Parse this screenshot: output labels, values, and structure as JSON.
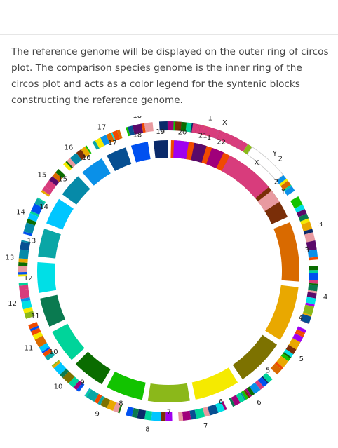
{
  "description": "The reference genome will be displayed on the outer ring of circos plot. The comparison species genome is the inner ring of the circos plot and acts as a color legend for the syntenic blocks constructing the reference genome.",
  "outer_ring": {
    "chromosomes": [
      "1",
      "2",
      "3",
      "4",
      "5",
      "6",
      "7",
      "8",
      "9",
      "10",
      "11",
      "12",
      "13",
      "14",
      "15",
      "16",
      "17",
      "18",
      "19",
      "X",
      "Y"
    ]
  },
  "inner_ring": {
    "chromosomes": [
      {
        "label": "1",
        "color": "#f04a00"
      },
      {
        "label": "2",
        "color": "#7a2e08"
      },
      {
        "label": "3",
        "color": "#d96a00"
      },
      {
        "label": "4",
        "color": "#e9a800"
      },
      {
        "label": "5",
        "color": "#7d7200"
      },
      {
        "label": "6",
        "color": "#f5ea00"
      },
      {
        "label": "7",
        "color": "#8bb81a"
      },
      {
        "label": "8",
        "color": "#12c300"
      },
      {
        "label": "9",
        "color": "#0a6c00"
      },
      {
        "label": "10",
        "color": "#00d49a"
      },
      {
        "label": "11",
        "color": "#0a7a50"
      },
      {
        "label": "12",
        "color": "#00dfe6"
      },
      {
        "label": "13",
        "color": "#0aa6a6"
      },
      {
        "label": "14",
        "color": "#00c6ff"
      },
      {
        "label": "15",
        "color": "#068aa8"
      },
      {
        "label": "16",
        "color": "#0a90e8"
      },
      {
        "label": "17",
        "color": "#074f92"
      },
      {
        "label": "18",
        "color": "#0050f0"
      },
      {
        "label": "19",
        "color": "#0a2a6a"
      },
      {
        "label": "20",
        "color": "#a000f0"
      },
      {
        "label": "21",
        "color": "#5a0a6a"
      },
      {
        "label": "22",
        "color": "#a0007a"
      },
      {
        "label": "X",
        "color": "#d83c7c"
      },
      {
        "label": "Y",
        "color": "#e89aa0"
      }
    ]
  }
}
